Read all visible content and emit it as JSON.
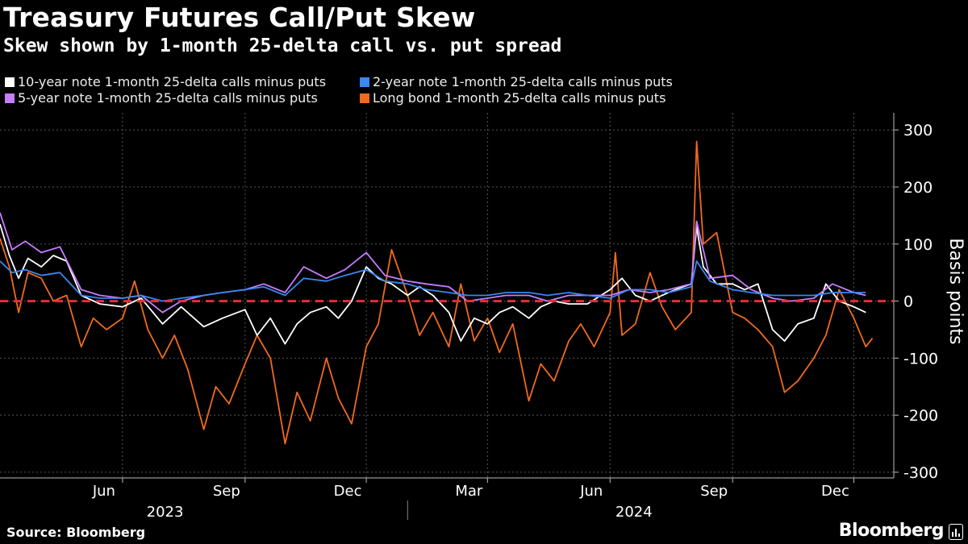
{
  "header": {
    "title": "Treasury Futures Call/Put Skew",
    "subtitle": "Skew shown by 1-month 25-delta call vs. put spread"
  },
  "footer": {
    "source": "Source: Bloomberg",
    "brand": "Bloomberg"
  },
  "colors": {
    "ten_year": "#ffffff",
    "two_year": "#3a87f0",
    "five_year": "#c77dff",
    "long_bond": "#f26a1c",
    "zero_line": "#e0303a",
    "grid": "#555555"
  },
  "chart_data": {
    "type": "line",
    "title": "Treasury Futures Call/Put Skew",
    "subtitle": "Skew shown by 1-month 25-delta call vs. put spread",
    "ylabel": "Basis points",
    "xlabel": "",
    "ylim": [
      -310,
      330
    ],
    "yticks": [
      300,
      200,
      100,
      0,
      -100,
      -200,
      -300
    ],
    "ytick_labels": [
      "300",
      "200",
      "100",
      "0",
      "-100",
      "-200",
      "-300"
    ],
    "xlim": [
      "2023-03-01",
      "2024-12-31"
    ],
    "xticks": [
      {
        "date": "2023-06-01",
        "label": "Jun"
      },
      {
        "date": "2023-09-01",
        "label": "Sep"
      },
      {
        "date": "2023-12-01",
        "label": "Dec"
      },
      {
        "date": "2024-03-01",
        "label": "Mar"
      },
      {
        "date": "2024-06-01",
        "label": "Jun"
      },
      {
        "date": "2024-09-01",
        "label": "Sep"
      },
      {
        "date": "2024-12-01",
        "label": "Dec"
      }
    ],
    "year_labels": [
      {
        "label": "2023",
        "center": "2023-07-15"
      },
      {
        "label": "2024",
        "center": "2024-07-01"
      }
    ],
    "year_divider": "2024-01-01",
    "reference_line": {
      "y": 0,
      "style": "dashed"
    },
    "legend_position": "top-left",
    "series": [
      {
        "name": "10-year note 1-month 25-delta calls minus puts",
        "key": "ten_year",
        "points": [
          [
            "2023-03-01",
            135
          ],
          [
            "2023-03-08",
            80
          ],
          [
            "2023-03-15",
            40
          ],
          [
            "2023-03-22",
            75
          ],
          [
            "2023-04-01",
            60
          ],
          [
            "2023-04-10",
            80
          ],
          [
            "2023-04-20",
            70
          ],
          [
            "2023-05-01",
            10
          ],
          [
            "2023-05-15",
            -5
          ],
          [
            "2023-06-01",
            -10
          ],
          [
            "2023-06-15",
            5
          ],
          [
            "2023-07-01",
            -40
          ],
          [
            "2023-07-15",
            -10
          ],
          [
            "2023-08-01",
            -45
          ],
          [
            "2023-08-15",
            -30
          ],
          [
            "2023-09-01",
            -15
          ],
          [
            "2023-09-10",
            -60
          ],
          [
            "2023-09-20",
            -30
          ],
          [
            "2023-10-01",
            -75
          ],
          [
            "2023-10-10",
            -40
          ],
          [
            "2023-10-20",
            -20
          ],
          [
            "2023-11-01",
            -10
          ],
          [
            "2023-11-10",
            -30
          ],
          [
            "2023-11-20",
            0
          ],
          [
            "2023-12-01",
            60
          ],
          [
            "2023-12-10",
            40
          ],
          [
            "2023-12-20",
            30
          ],
          [
            "2024-01-01",
            10
          ],
          [
            "2024-01-10",
            25
          ],
          [
            "2024-01-20",
            10
          ],
          [
            "2024-02-01",
            -20
          ],
          [
            "2024-02-10",
            -70
          ],
          [
            "2024-02-20",
            -30
          ],
          [
            "2024-03-01",
            -40
          ],
          [
            "2024-03-10",
            -20
          ],
          [
            "2024-03-20",
            -10
          ],
          [
            "2024-04-01",
            -30
          ],
          [
            "2024-04-10",
            -10
          ],
          [
            "2024-04-20",
            0
          ],
          [
            "2024-05-01",
            -5
          ],
          [
            "2024-05-15",
            -5
          ],
          [
            "2024-06-01",
            20
          ],
          [
            "2024-06-10",
            40
          ],
          [
            "2024-06-20",
            10
          ],
          [
            "2024-07-01",
            0
          ],
          [
            "2024-07-10",
            10
          ],
          [
            "2024-07-20",
            20
          ],
          [
            "2024-08-01",
            30
          ],
          [
            "2024-08-05",
            130
          ],
          [
            "2024-08-10",
            60
          ],
          [
            "2024-08-20",
            30
          ],
          [
            "2024-09-01",
            30
          ],
          [
            "2024-09-10",
            20
          ],
          [
            "2024-09-20",
            30
          ],
          [
            "2024-10-01",
            -50
          ],
          [
            "2024-10-10",
            -70
          ],
          [
            "2024-10-20",
            -40
          ],
          [
            "2024-11-01",
            -30
          ],
          [
            "2024-11-10",
            30
          ],
          [
            "2024-11-20",
            0
          ],
          [
            "2024-12-01",
            -10
          ],
          [
            "2024-12-10",
            -20
          ]
        ]
      },
      {
        "name": "2-year note 1-month 25-delta calls minus puts",
        "key": "two_year",
        "points": [
          [
            "2023-03-01",
            70
          ],
          [
            "2023-03-10",
            50
          ],
          [
            "2023-03-20",
            55
          ],
          [
            "2023-04-01",
            45
          ],
          [
            "2023-04-15",
            50
          ],
          [
            "2023-05-01",
            10
          ],
          [
            "2023-05-15",
            5
          ],
          [
            "2023-06-01",
            5
          ],
          [
            "2023-06-15",
            10
          ],
          [
            "2023-07-01",
            0
          ],
          [
            "2023-07-15",
            5
          ],
          [
            "2023-08-01",
            10
          ],
          [
            "2023-08-15",
            15
          ],
          [
            "2023-09-01",
            20
          ],
          [
            "2023-09-15",
            25
          ],
          [
            "2023-10-01",
            10
          ],
          [
            "2023-10-15",
            40
          ],
          [
            "2023-11-01",
            35
          ],
          [
            "2023-11-15",
            45
          ],
          [
            "2023-12-01",
            55
          ],
          [
            "2023-12-15",
            35
          ],
          [
            "2024-01-01",
            30
          ],
          [
            "2024-01-15",
            20
          ],
          [
            "2024-02-01",
            15
          ],
          [
            "2024-02-15",
            10
          ],
          [
            "2024-03-01",
            10
          ],
          [
            "2024-03-15",
            15
          ],
          [
            "2024-04-01",
            15
          ],
          [
            "2024-04-15",
            10
          ],
          [
            "2024-05-01",
            15
          ],
          [
            "2024-05-15",
            10
          ],
          [
            "2024-06-01",
            5
          ],
          [
            "2024-06-15",
            20
          ],
          [
            "2024-07-01",
            20
          ],
          [
            "2024-07-15",
            15
          ],
          [
            "2024-08-01",
            25
          ],
          [
            "2024-08-05",
            70
          ],
          [
            "2024-08-15",
            35
          ],
          [
            "2024-09-01",
            20
          ],
          [
            "2024-09-15",
            15
          ],
          [
            "2024-10-01",
            10
          ],
          [
            "2024-10-15",
            10
          ],
          [
            "2024-11-01",
            10
          ],
          [
            "2024-11-15",
            15
          ],
          [
            "2024-12-01",
            15
          ],
          [
            "2024-12-10",
            15
          ]
        ]
      },
      {
        "name": "5-year note 1-month 25-delta calls minus puts",
        "key": "five_year",
        "points": [
          [
            "2023-03-01",
            155
          ],
          [
            "2023-03-10",
            90
          ],
          [
            "2023-03-20",
            105
          ],
          [
            "2023-04-01",
            85
          ],
          [
            "2023-04-15",
            95
          ],
          [
            "2023-05-01",
            20
          ],
          [
            "2023-05-15",
            10
          ],
          [
            "2023-06-01",
            5
          ],
          [
            "2023-06-15",
            10
          ],
          [
            "2023-07-01",
            -20
          ],
          [
            "2023-07-15",
            0
          ],
          [
            "2023-08-01",
            10
          ],
          [
            "2023-08-15",
            15
          ],
          [
            "2023-09-01",
            20
          ],
          [
            "2023-09-15",
            30
          ],
          [
            "2023-10-01",
            15
          ],
          [
            "2023-10-15",
            60
          ],
          [
            "2023-11-01",
            40
          ],
          [
            "2023-11-15",
            55
          ],
          [
            "2023-12-01",
            85
          ],
          [
            "2023-12-15",
            45
          ],
          [
            "2024-01-01",
            35
          ],
          [
            "2024-01-15",
            30
          ],
          [
            "2024-02-01",
            25
          ],
          [
            "2024-02-15",
            0
          ],
          [
            "2024-03-01",
            5
          ],
          [
            "2024-03-15",
            10
          ],
          [
            "2024-04-01",
            10
          ],
          [
            "2024-04-15",
            0
          ],
          [
            "2024-05-01",
            10
          ],
          [
            "2024-05-15",
            10
          ],
          [
            "2024-06-01",
            10
          ],
          [
            "2024-06-15",
            20
          ],
          [
            "2024-07-01",
            15
          ],
          [
            "2024-07-15",
            20
          ],
          [
            "2024-08-01",
            30
          ],
          [
            "2024-08-05",
            140
          ],
          [
            "2024-08-15",
            40
          ],
          [
            "2024-09-01",
            45
          ],
          [
            "2024-09-15",
            20
          ],
          [
            "2024-10-01",
            5
          ],
          [
            "2024-10-15",
            0
          ],
          [
            "2024-11-01",
            5
          ],
          [
            "2024-11-15",
            30
          ],
          [
            "2024-12-01",
            15
          ],
          [
            "2024-12-10",
            10
          ]
        ]
      },
      {
        "name": "Long bond 1-month 25-delta calls minus puts",
        "key": "long_bond",
        "points": [
          [
            "2023-03-01",
            110
          ],
          [
            "2023-03-08",
            60
          ],
          [
            "2023-03-15",
            -20
          ],
          [
            "2023-03-22",
            50
          ],
          [
            "2023-04-01",
            40
          ],
          [
            "2023-04-10",
            0
          ],
          [
            "2023-04-20",
            10
          ],
          [
            "2023-05-01",
            -80
          ],
          [
            "2023-05-10",
            -30
          ],
          [
            "2023-05-20",
            -50
          ],
          [
            "2023-06-01",
            -30
          ],
          [
            "2023-06-10",
            35
          ],
          [
            "2023-06-20",
            -50
          ],
          [
            "2023-07-01",
            -100
          ],
          [
            "2023-07-10",
            -60
          ],
          [
            "2023-07-20",
            -120
          ],
          [
            "2023-08-01",
            -225
          ],
          [
            "2023-08-10",
            -150
          ],
          [
            "2023-08-20",
            -180
          ],
          [
            "2023-09-01",
            -110
          ],
          [
            "2023-09-10",
            -60
          ],
          [
            "2023-09-20",
            -100
          ],
          [
            "2023-10-01",
            -250
          ],
          [
            "2023-10-10",
            -160
          ],
          [
            "2023-10-20",
            -210
          ],
          [
            "2023-11-01",
            -100
          ],
          [
            "2023-11-10",
            -170
          ],
          [
            "2023-11-20",
            -215
          ],
          [
            "2023-12-01",
            -80
          ],
          [
            "2023-12-10",
            -40
          ],
          [
            "2023-12-20",
            90
          ],
          [
            "2024-01-01",
            10
          ],
          [
            "2024-01-10",
            -60
          ],
          [
            "2024-01-20",
            -20
          ],
          [
            "2024-02-01",
            -80
          ],
          [
            "2024-02-10",
            30
          ],
          [
            "2024-02-20",
            -70
          ],
          [
            "2024-03-01",
            -30
          ],
          [
            "2024-03-10",
            -90
          ],
          [
            "2024-03-20",
            -40
          ],
          [
            "2024-04-01",
            -175
          ],
          [
            "2024-04-10",
            -110
          ],
          [
            "2024-04-20",
            -140
          ],
          [
            "2024-05-01",
            -70
          ],
          [
            "2024-05-10",
            -40
          ],
          [
            "2024-05-20",
            -80
          ],
          [
            "2024-06-01",
            -20
          ],
          [
            "2024-06-05",
            85
          ],
          [
            "2024-06-10",
            -60
          ],
          [
            "2024-06-20",
            -40
          ],
          [
            "2024-07-01",
            50
          ],
          [
            "2024-07-10",
            -10
          ],
          [
            "2024-07-20",
            -50
          ],
          [
            "2024-08-01",
            -20
          ],
          [
            "2024-08-05",
            280
          ],
          [
            "2024-08-10",
            100
          ],
          [
            "2024-08-20",
            120
          ],
          [
            "2024-09-01",
            -20
          ],
          [
            "2024-09-10",
            -30
          ],
          [
            "2024-09-20",
            -50
          ],
          [
            "2024-10-01",
            -80
          ],
          [
            "2024-10-10",
            -160
          ],
          [
            "2024-10-20",
            -140
          ],
          [
            "2024-11-01",
            -100
          ],
          [
            "2024-11-10",
            -60
          ],
          [
            "2024-11-20",
            20
          ],
          [
            "2024-12-01",
            -30
          ],
          [
            "2024-12-10",
            -80
          ],
          [
            "2024-12-15",
            -65
          ]
        ]
      }
    ]
  }
}
